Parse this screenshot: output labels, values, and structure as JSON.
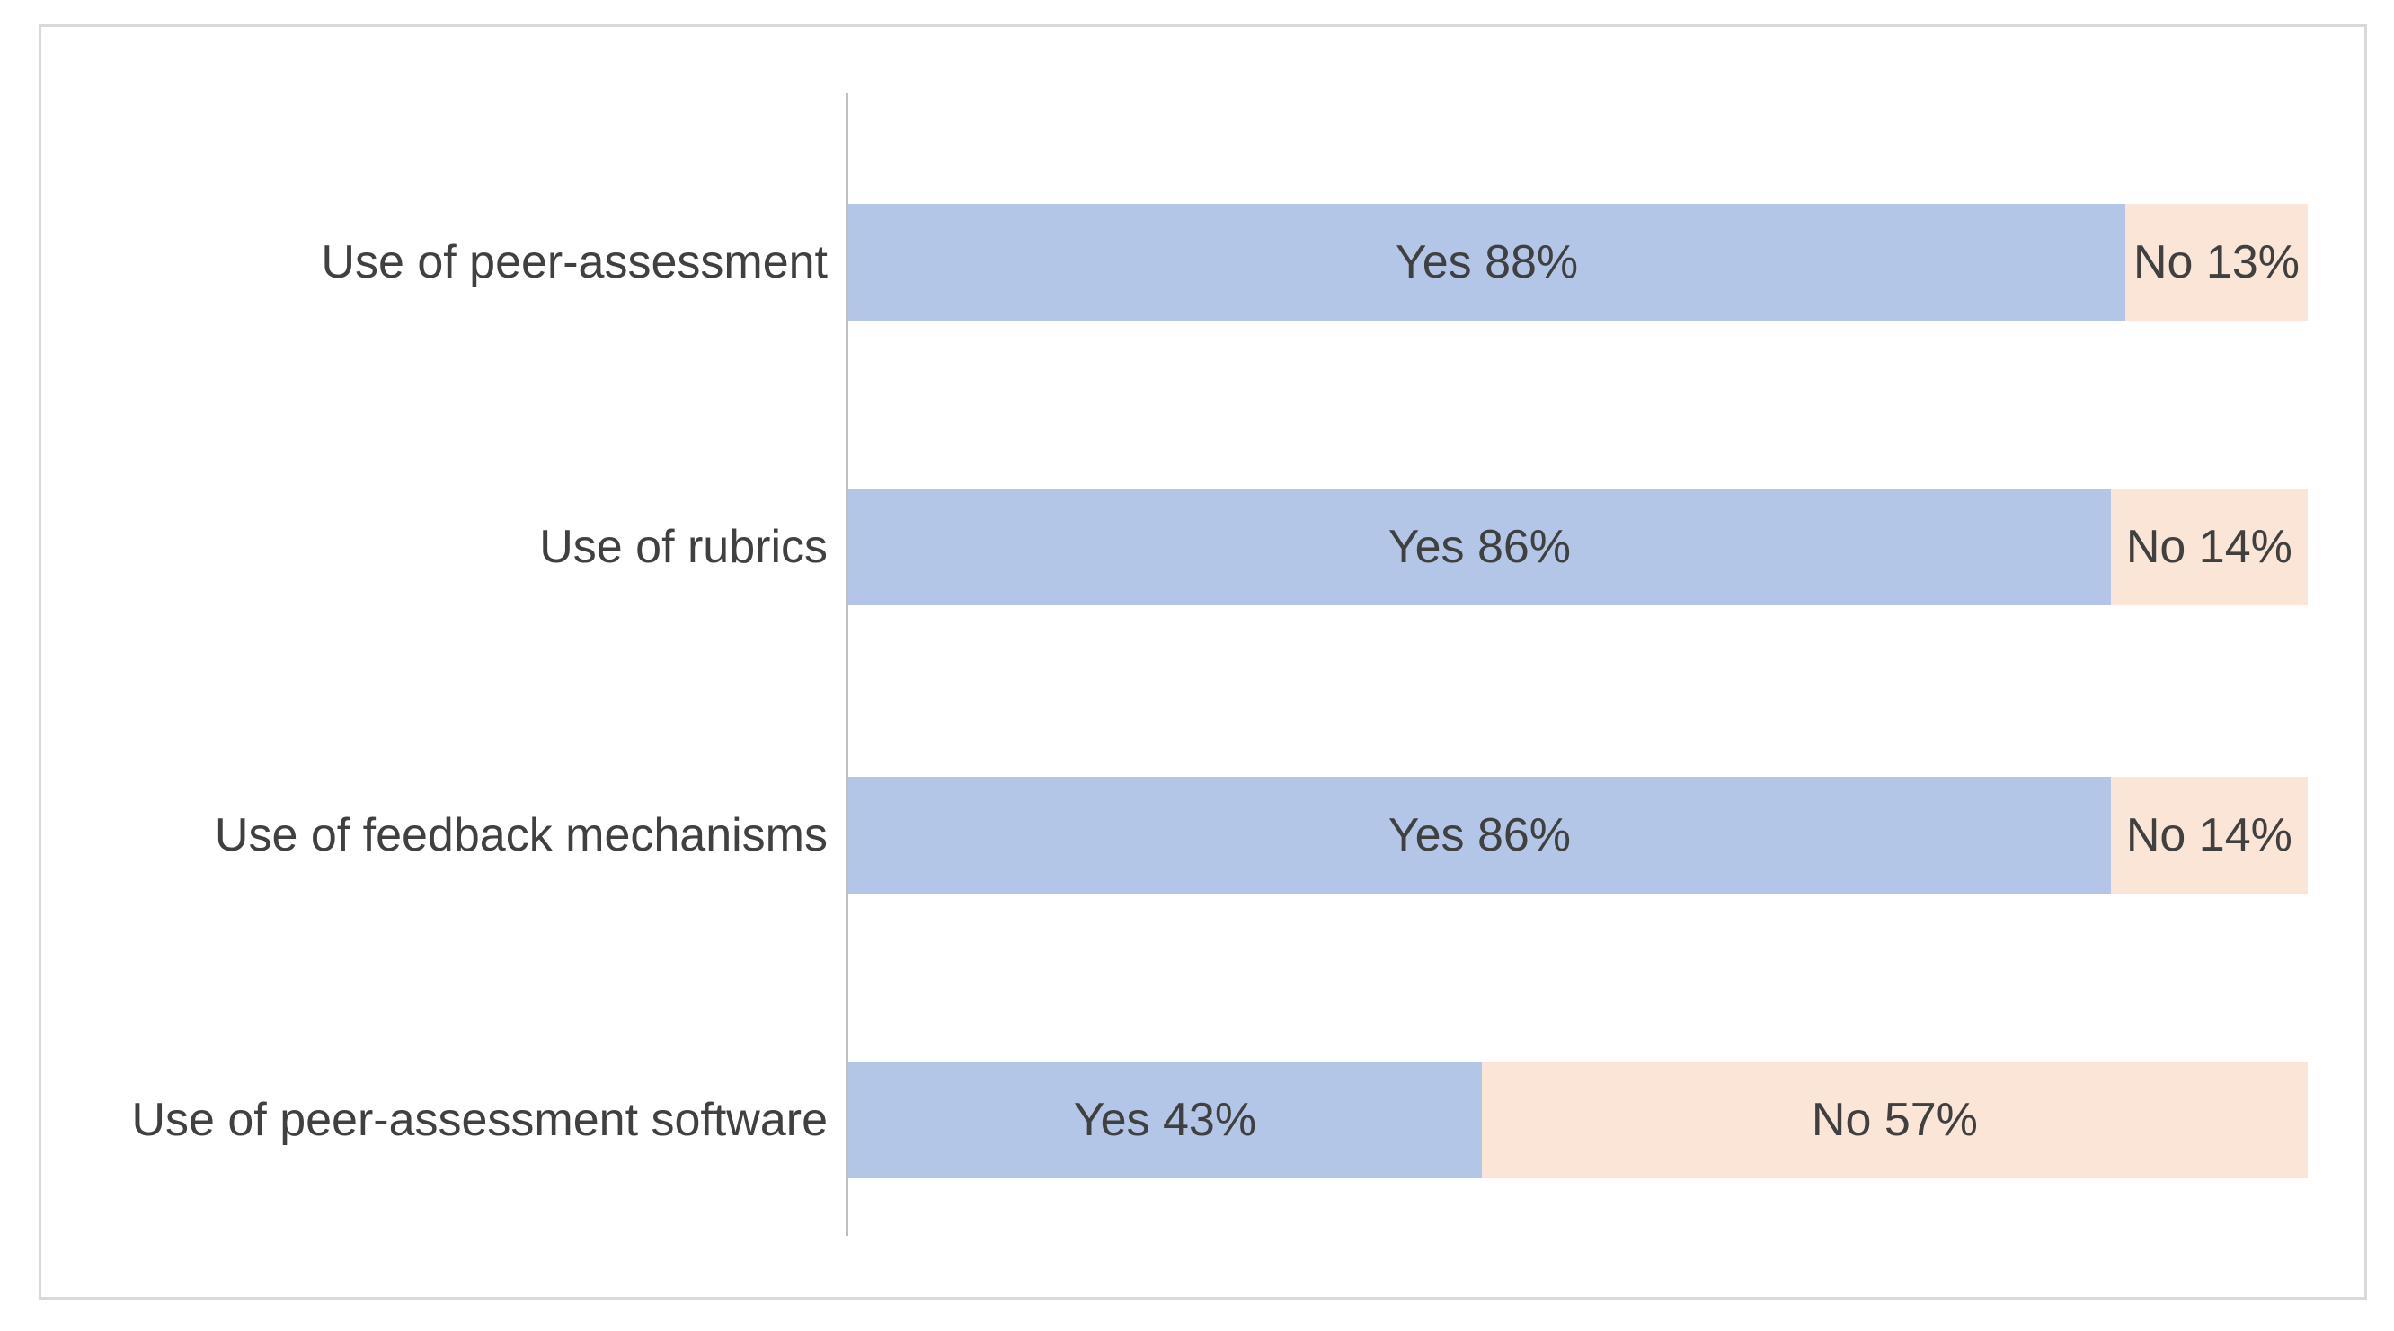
{
  "chart_data": {
    "type": "bar",
    "subtype": "100-percent-stacked-horizontal",
    "title": "",
    "xlabel": "",
    "ylabel": "",
    "legend_position": "none",
    "grid": false,
    "axis_range_pct": [
      0,
      100
    ],
    "categories": [
      "Use of peer-assessment",
      "Use of rubrics",
      "Use of feedback mechanisms",
      "Use of peer-assessment software"
    ],
    "series": [
      {
        "name": "Yes",
        "color": "#b4c6e7",
        "values": [
          88,
          86,
          86,
          43
        ]
      },
      {
        "name": "No",
        "color": "#fbe5d6",
        "values": [
          13,
          14,
          14,
          57
        ]
      }
    ],
    "rows": [
      {
        "category": "Use of peer-assessment",
        "yes_label": "Yes 88%",
        "no_label": "No 13%",
        "yes_pct": 88,
        "no_pct": 13,
        "yes_width_pct": 87.5
      },
      {
        "category": "Use of rubrics",
        "yes_label": "Yes 86%",
        "no_label": "No 14%",
        "yes_pct": 86,
        "no_pct": 14,
        "yes_width_pct": 86.5
      },
      {
        "category": "Use of feedback mechanisms",
        "yes_label": "Yes 86%",
        "no_label": "No 14%",
        "yes_pct": 86,
        "no_pct": 14,
        "yes_width_pct": 86.5
      },
      {
        "category": "Use of peer-assessment software",
        "yes_label": "Yes 43%",
        "no_label": "No 57%",
        "yes_pct": 43,
        "no_pct": 57,
        "yes_width_pct": 43.4
      }
    ],
    "colors": {
      "yes_fill": "#b4c6e7",
      "no_fill": "#fbe5d6",
      "label_text": "#404040",
      "axis_line": "#bfbfbf",
      "frame_border": "#d9d9d9",
      "background": "#ffffff"
    }
  }
}
